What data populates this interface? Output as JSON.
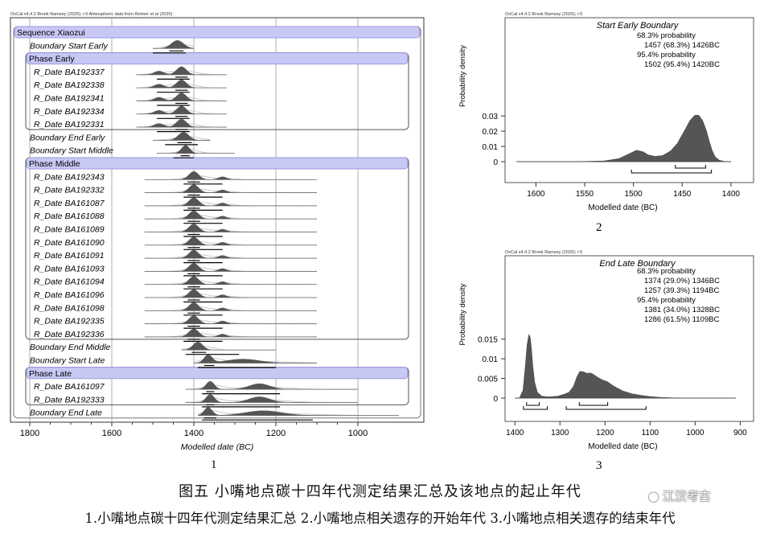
{
  "chart_data": [
    {
      "type": "multiplot",
      "header": "OxCal v4.4.2 Bronk Ramsey (2020); r:5 Atmospheric data from Reimer et al (2020)",
      "xlabel": "Modelled date (BC)",
      "x_ticks": [
        1800,
        1600,
        1400,
        1200,
        1000
      ],
      "xlim": [
        1800,
        1000
      ],
      "panel_number": "1",
      "rows": [
        {
          "label": "Sequence Xiaozui",
          "kind": "sequence",
          "peaks": []
        },
        {
          "label": "Boundary Start Early",
          "kind": "item",
          "peaks": [
            [
              1440,
              1.0,
              15
            ]
          ],
          "post_bar": [
            1460,
            1425
          ],
          "post_bar2": [
            1500,
            1420
          ],
          "line": [
            1500,
            1400
          ]
        },
        {
          "label": "Phase Early",
          "kind": "phase",
          "peaks": []
        },
        {
          "label": "R_Date BA192337",
          "kind": "item",
          "peaks": [
            [
              1430,
              1.0,
              12
            ],
            [
              1485,
              0.45,
              12
            ]
          ],
          "post_bar": [
            1445,
            1415
          ],
          "post_bar2": [
            1490,
            1410
          ],
          "line": [
            1540,
            1320
          ]
        },
        {
          "label": "R_Date BA192338",
          "kind": "item",
          "peaks": [
            [
              1430,
              1.0,
              12
            ],
            [
              1485,
              0.45,
              12
            ]
          ],
          "post_bar": [
            1445,
            1415
          ],
          "post_bar2": [
            1490,
            1410
          ],
          "line": [
            1540,
            1320
          ]
        },
        {
          "label": "R_Date BA192341",
          "kind": "item",
          "peaks": [
            [
              1430,
              1.0,
              12
            ],
            [
              1485,
              0.45,
              12
            ]
          ],
          "post_bar": [
            1445,
            1415
          ],
          "post_bar2": [
            1490,
            1410
          ],
          "line": [
            1540,
            1320
          ]
        },
        {
          "label": "R_Date BA192334",
          "kind": "item",
          "peaks": [
            [
              1430,
              1.0,
              12
            ],
            [
              1485,
              0.45,
              12
            ]
          ],
          "post_bar": [
            1445,
            1415
          ],
          "post_bar2": [
            1490,
            1410
          ],
          "line": [
            1540,
            1320
          ]
        },
        {
          "label": "R_Date BA192331",
          "kind": "item",
          "peaks": [
            [
              1430,
              1.0,
              12
            ],
            [
              1485,
              0.45,
              12
            ]
          ],
          "post_bar": [
            1445,
            1415
          ],
          "post_bar2": [
            1490,
            1410
          ],
          "line": [
            1540,
            1320
          ]
        },
        {
          "label": "Boundary End Early",
          "kind": "item",
          "peaks": [
            [
              1425,
              1.0,
              13
            ]
          ],
          "post_bar": [
            1440,
            1405
          ],
          "post_bar2": [
            1470,
            1390
          ],
          "line": [
            1500,
            1360
          ]
        },
        {
          "label": "Boundary Start Middle",
          "kind": "item",
          "peaks": [
            [
              1420,
              1.0,
              10
            ]
          ],
          "post_bar": [
            1432,
            1410
          ],
          "post_bar2": [
            1450,
            1400
          ],
          "line": [
            1490,
            1300
          ]
        },
        {
          "label": "Phase Middle",
          "kind": "phase",
          "peaks": []
        },
        {
          "label": "R_Date BA192343",
          "kind": "item",
          "peaks": [
            [
              1400,
              1.0,
              12
            ],
            [
              1330,
              0.35,
              10
            ]
          ],
          "post_bar": [
            1415,
            1385
          ],
          "post_bar2": [
            1425,
            1330
          ],
          "line": [
            1520,
            1100
          ]
        },
        {
          "label": "R_Date BA192332",
          "kind": "item",
          "peaks": [
            [
              1400,
              1.0,
              12
            ],
            [
              1330,
              0.35,
              10
            ]
          ],
          "post_bar": [
            1415,
            1385
          ],
          "post_bar2": [
            1425,
            1330
          ],
          "line": [
            1520,
            1100
          ]
        },
        {
          "label": "R_Date BA161087",
          "kind": "item",
          "peaks": [
            [
              1400,
              1.0,
              12
            ],
            [
              1330,
              0.35,
              10
            ]
          ],
          "post_bar": [
            1415,
            1385
          ],
          "post_bar2": [
            1425,
            1330
          ],
          "line": [
            1520,
            1100
          ]
        },
        {
          "label": "R_Date BA161088",
          "kind": "item",
          "peaks": [
            [
              1400,
              1.0,
              12
            ],
            [
              1330,
              0.35,
              10
            ]
          ],
          "post_bar": [
            1415,
            1385
          ],
          "post_bar2": [
            1425,
            1330
          ],
          "line": [
            1520,
            1100
          ]
        },
        {
          "label": "R_Date BA161089",
          "kind": "item",
          "peaks": [
            [
              1400,
              1.0,
              12
            ],
            [
              1330,
              0.35,
              10
            ]
          ],
          "post_bar": [
            1415,
            1385
          ],
          "post_bar2": [
            1425,
            1330
          ],
          "line": [
            1520,
            1100
          ]
        },
        {
          "label": "R_Date BA161090",
          "kind": "item",
          "peaks": [
            [
              1400,
              1.0,
              12
            ],
            [
              1330,
              0.35,
              10
            ]
          ],
          "post_bar": [
            1415,
            1385
          ],
          "post_bar2": [
            1425,
            1330
          ],
          "line": [
            1520,
            1100
          ]
        },
        {
          "label": "R_Date BA161091",
          "kind": "item",
          "peaks": [
            [
              1400,
              1.0,
              12
            ],
            [
              1330,
              0.35,
              10
            ]
          ],
          "post_bar": [
            1415,
            1385
          ],
          "post_bar2": [
            1425,
            1330
          ],
          "line": [
            1520,
            1100
          ]
        },
        {
          "label": "R_Date BA161093",
          "kind": "item",
          "peaks": [
            [
              1400,
              1.0,
              12
            ],
            [
              1330,
              0.35,
              10
            ]
          ],
          "post_bar": [
            1415,
            1385
          ],
          "post_bar2": [
            1425,
            1330
          ],
          "line": [
            1520,
            1100
          ]
        },
        {
          "label": "R_Date BA161094",
          "kind": "item",
          "peaks": [
            [
              1400,
              1.0,
              12
            ],
            [
              1330,
              0.35,
              10
            ]
          ],
          "post_bar": [
            1415,
            1385
          ],
          "post_bar2": [
            1425,
            1330
          ],
          "line": [
            1520,
            1100
          ]
        },
        {
          "label": "R_Date BA161096",
          "kind": "item",
          "peaks": [
            [
              1400,
              1.0,
              12
            ],
            [
              1330,
              0.35,
              10
            ]
          ],
          "post_bar": [
            1415,
            1385
          ],
          "post_bar2": [
            1425,
            1330
          ],
          "line": [
            1520,
            1100
          ]
        },
        {
          "label": "R_Date BA161098",
          "kind": "item",
          "peaks": [
            [
              1400,
              1.0,
              12
            ],
            [
              1330,
              0.35,
              10
            ]
          ],
          "post_bar": [
            1415,
            1385
          ],
          "post_bar2": [
            1425,
            1330
          ],
          "line": [
            1520,
            1100
          ]
        },
        {
          "label": "R_Date BA192335",
          "kind": "item",
          "peaks": [
            [
              1400,
              1.0,
              12
            ],
            [
              1330,
              0.35,
              10
            ]
          ],
          "post_bar": [
            1415,
            1385
          ],
          "post_bar2": [
            1425,
            1330
          ],
          "line": [
            1520,
            1100
          ]
        },
        {
          "label": "R_Date BA192336",
          "kind": "item",
          "peaks": [
            [
              1400,
              1.0,
              12
            ],
            [
              1330,
              0.35,
              10
            ]
          ],
          "post_bar": [
            1415,
            1385
          ],
          "post_bar2": [
            1425,
            1330
          ],
          "line": [
            1520,
            1100
          ]
        },
        {
          "label": "Boundary End Middle",
          "kind": "item",
          "peaks": [
            [
              1390,
              1.0,
              12
            ]
          ],
          "post_bar": [
            1405,
            1370
          ],
          "post_bar2": [
            1420,
            1290
          ],
          "line": [
            1430,
            1200
          ]
        },
        {
          "label": "Boundary Start Late",
          "kind": "item",
          "peaks": [
            [
              1365,
              1.0,
              10
            ],
            [
              1280,
              0.5,
              40
            ]
          ],
          "post_bar": [
            1375,
            1350
          ],
          "post_bar2": [
            1390,
            1200
          ],
          "line": [
            1400,
            1100
          ]
        },
        {
          "label": "Phase Late",
          "kind": "phase",
          "peaks": []
        },
        {
          "label": "R_Date BA161097",
          "kind": "item",
          "peaks": [
            [
              1360,
              1.0,
              10
            ],
            [
              1240,
              0.7,
              25
            ]
          ],
          "post_bar": [
            1370,
            1350
          ],
          "post_bar2": [
            1380,
            1190
          ],
          "line": [
            1420,
            1000
          ]
        },
        {
          "label": "R_Date BA192333",
          "kind": "item",
          "peaks": [
            [
              1360,
              1.0,
              10
            ],
            [
              1240,
              0.7,
              25
            ]
          ],
          "post_bar": [
            1370,
            1350
          ],
          "post_bar2": [
            1380,
            1190
          ],
          "line": [
            1420,
            1000
          ]
        },
        {
          "label": "Boundary End Late",
          "kind": "item",
          "peaks": [
            [
              1365,
              1.0,
              10
            ],
            [
              1230,
              0.6,
              45
            ]
          ],
          "post_bar": [
            1375,
            1345
          ],
          "post_bar2": [
            1380,
            1110
          ],
          "line": [
            1390,
            900
          ]
        }
      ]
    },
    {
      "type": "area",
      "header": "OxCal v4.4.2 Bronk Ramsey (2020); r:5",
      "title": "Start Early Boundary",
      "annotations": [
        "68.3% probability",
        "1457 (68.3%) 1426BC",
        "95.4% probability",
        "1502 (95.4%) 1420BC"
      ],
      "xlabel": "Modelled date (BC)",
      "ylabel": "Probability density",
      "x_ticks": [
        1600,
        1550,
        1500,
        1450,
        1400
      ],
      "y_ticks": [
        "0",
        "0.01",
        "0.02",
        "0.03"
      ],
      "xlim": [
        1630,
        1390
      ],
      "ylim": [
        0,
        0.038
      ],
      "x": [
        1620,
        1560,
        1530,
        1515,
        1505,
        1497,
        1490,
        1485,
        1478,
        1470,
        1462,
        1455,
        1448,
        1442,
        1437,
        1433,
        1429,
        1425,
        1422,
        1419,
        1416,
        1412,
        1408,
        1404,
        1400
      ],
      "y": [
        0,
        0,
        0.0005,
        0.002,
        0.005,
        0.0075,
        0.0065,
        0.0045,
        0.0035,
        0.004,
        0.007,
        0.012,
        0.02,
        0.027,
        0.0305,
        0.0305,
        0.027,
        0.02,
        0.013,
        0.007,
        0.003,
        0.001,
        0.0003,
        0,
        0
      ],
      "ranges_68": [
        [
          1457,
          1426
        ]
      ],
      "ranges_95": [
        [
          1502,
          1420
        ]
      ],
      "panel_number": "2"
    },
    {
      "type": "area",
      "header": "OxCal v4.4.2 Bronk Ramsey (2020); r:5",
      "title": "End Late Boundary",
      "annotations": [
        "68.3% probability",
        "1374 (29.0%) 1346BC",
        "1257 (39.3%) 1194BC",
        "95.4% probability",
        "1381 (34.0%) 1328BC",
        "1286 (61.5%) 1109BC"
      ],
      "xlabel": "Modelled date (BC)",
      "ylabel": "Probability density",
      "x_ticks": [
        1400,
        1300,
        1200,
        1100,
        1000,
        900
      ],
      "y_ticks": [
        "0",
        "0.005",
        "0.01",
        "0.015"
      ],
      "xlim": [
        1420,
        890
      ],
      "ylim": [
        0,
        0.018
      ],
      "x": [
        1400,
        1390,
        1382,
        1377,
        1373,
        1369,
        1366,
        1363,
        1360,
        1356,
        1350,
        1340,
        1325,
        1305,
        1290,
        1280,
        1270,
        1262,
        1256,
        1248,
        1240,
        1232,
        1225,
        1215,
        1205,
        1195,
        1180,
        1160,
        1140,
        1120,
        1100,
        1080,
        1060,
        1040,
        1020,
        1000,
        960,
        910
      ],
      "y": [
        0,
        0,
        0.002,
        0.008,
        0.0135,
        0.0162,
        0.0155,
        0.0125,
        0.008,
        0.004,
        0.0015,
        0.0005,
        0.0003,
        0.0005,
        0.001,
        0.0015,
        0.003,
        0.0055,
        0.0068,
        0.0067,
        0.0063,
        0.0064,
        0.006,
        0.0052,
        0.0046,
        0.0042,
        0.003,
        0.0018,
        0.0011,
        0.0007,
        0.0004,
        0.0002,
        0.0001,
        5e-05,
        0,
        0,
        0,
        0
      ],
      "ranges_68": [
        [
          1374,
          1346
        ],
        [
          1257,
          1194
        ]
      ],
      "ranges_95": [
        [
          1381,
          1328
        ],
        [
          1286,
          1109
        ]
      ],
      "panel_number": "3"
    }
  ],
  "caption": {
    "title": "图五 小嘴地点碳十四年代测定结果汇总及该地点的起止年代",
    "subtitle": "1.小嘴地点碳十四年代测定结果汇总 2.小嘴地点相关遗存的开始年代 3.小嘴地点相关遗存的结束年代"
  },
  "watermark": "江汉考古",
  "colors": {
    "phase_header": "#c8c8f5",
    "phase_border": "#9a9ae0",
    "curve": "#555555",
    "prior": "#c9c9c9",
    "grid": "#9a9a9a"
  }
}
